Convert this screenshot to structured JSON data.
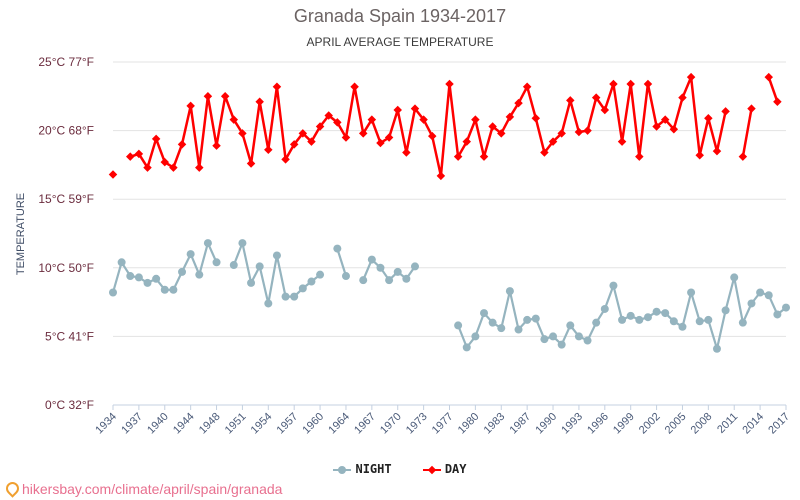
{
  "chart_data": {
    "type": "line",
    "title": "Granada Spain 1934-2017",
    "subtitle": "APRIL AVERAGE TEMPERATURE",
    "ylabel": "TEMPERATURE",
    "xlabel": "",
    "ylim": [
      0,
      25
    ],
    "y_ticks": [
      {
        "value": 0,
        "label": "0°C 32°F"
      },
      {
        "value": 5,
        "label": "5°C 41°F"
      },
      {
        "value": 10,
        "label": "10°C 50°F"
      },
      {
        "value": 15,
        "label": "15°C 59°F"
      },
      {
        "value": 20,
        "label": "20°C 68°F"
      },
      {
        "value": 25,
        "label": "25°C 77°F"
      }
    ],
    "x_tick_labels": [
      "1934",
      "1937",
      "1940",
      "1944",
      "1948",
      "1951",
      "1954",
      "1957",
      "1960",
      "1964",
      "1967",
      "1970",
      "1973",
      "1977",
      "1980",
      "1983",
      "1987",
      "1990",
      "1993",
      "1996",
      "1999",
      "2002",
      "2005",
      "2008",
      "2011",
      "2014",
      "2017"
    ],
    "categories": [
      1934,
      1935,
      1936,
      1937,
      1938,
      1939,
      1940,
      1941,
      1943,
      1944,
      1945,
      1947,
      1948,
      1949,
      1950,
      1951,
      1952,
      1953,
      1954,
      1955,
      1956,
      1957,
      1958,
      1959,
      1960,
      1961,
      1963,
      1964,
      1965,
      1966,
      1967,
      1968,
      1969,
      1970,
      1971,
      1972,
      1973,
      1974,
      1976,
      1977,
      1978,
      1979,
      1980,
      1981,
      1982,
      1983,
      1984,
      1986,
      1987,
      1988,
      1989,
      1990,
      1991,
      1992,
      1993,
      1994,
      1995,
      1996,
      1997,
      1998,
      1999,
      2000,
      2001,
      2002,
      2003,
      2004,
      2005,
      2006,
      2007,
      2008,
      2009,
      2010,
      2011,
      2012,
      2013,
      2014,
      2015,
      2016,
      2017
    ],
    "grid": true,
    "legend_position": "bottom",
    "series": [
      {
        "name": "NIGHT",
        "color": "#95b4bf",
        "marker": "circle",
        "values": [
          8.2,
          10.4,
          9.4,
          9.3,
          8.9,
          9.2,
          8.4,
          8.4,
          9.7,
          11.0,
          9.5,
          11.8,
          10.4,
          null,
          10.2,
          11.8,
          8.9,
          10.1,
          7.4,
          10.9,
          7.9,
          7.9,
          8.5,
          9.0,
          9.5,
          null,
          11.4,
          9.4,
          null,
          9.1,
          10.6,
          10.0,
          9.1,
          9.7,
          9.2,
          10.1,
          null,
          null,
          null,
          null,
          5.8,
          4.2,
          5.0,
          6.7,
          6.0,
          5.6,
          8.3,
          5.5,
          6.2,
          6.3,
          4.8,
          5.0,
          4.4,
          5.8,
          5.0,
          4.7,
          6.0,
          7.0,
          8.7,
          6.2,
          6.5,
          6.2,
          6.4,
          6.8,
          6.7,
          6.1,
          5.7,
          8.2,
          6.1,
          6.2,
          4.1,
          6.9,
          9.3,
          6.0,
          7.4,
          8.2,
          8.0,
          6.6,
          7.1
        ]
      },
      {
        "name": "DAY",
        "color": "#ff0000",
        "marker": "diamond",
        "values": [
          16.8,
          null,
          18.1,
          18.3,
          17.3,
          19.4,
          17.7,
          17.3,
          19.0,
          21.8,
          17.3,
          22.5,
          18.9,
          22.5,
          20.8,
          19.8,
          17.6,
          22.1,
          18.6,
          23.2,
          17.9,
          19.0,
          19.8,
          19.2,
          20.3,
          21.1,
          20.6,
          19.5,
          23.2,
          19.8,
          20.8,
          19.1,
          19.5,
          21.5,
          18.4,
          21.6,
          20.8,
          19.6,
          16.7,
          23.4,
          18.1,
          19.2,
          20.8,
          18.1,
          20.3,
          19.8,
          21.0,
          22.0,
          23.2,
          20.9,
          18.4,
          19.2,
          19.8,
          22.2,
          19.9,
          20.0,
          22.4,
          21.5,
          23.4,
          19.2,
          23.4,
          18.1,
          23.4,
          20.3,
          20.8,
          20.1,
          22.4,
          23.9,
          18.2,
          20.9,
          18.5,
          21.4,
          null,
          18.1,
          21.6,
          null,
          23.9,
          22.1,
          null
        ]
      }
    ]
  },
  "legend": {
    "night_label": "NIGHT",
    "day_label": "DAY"
  },
  "footer": {
    "source_text": "hikersbay.com/climate/april/spain/granada"
  }
}
